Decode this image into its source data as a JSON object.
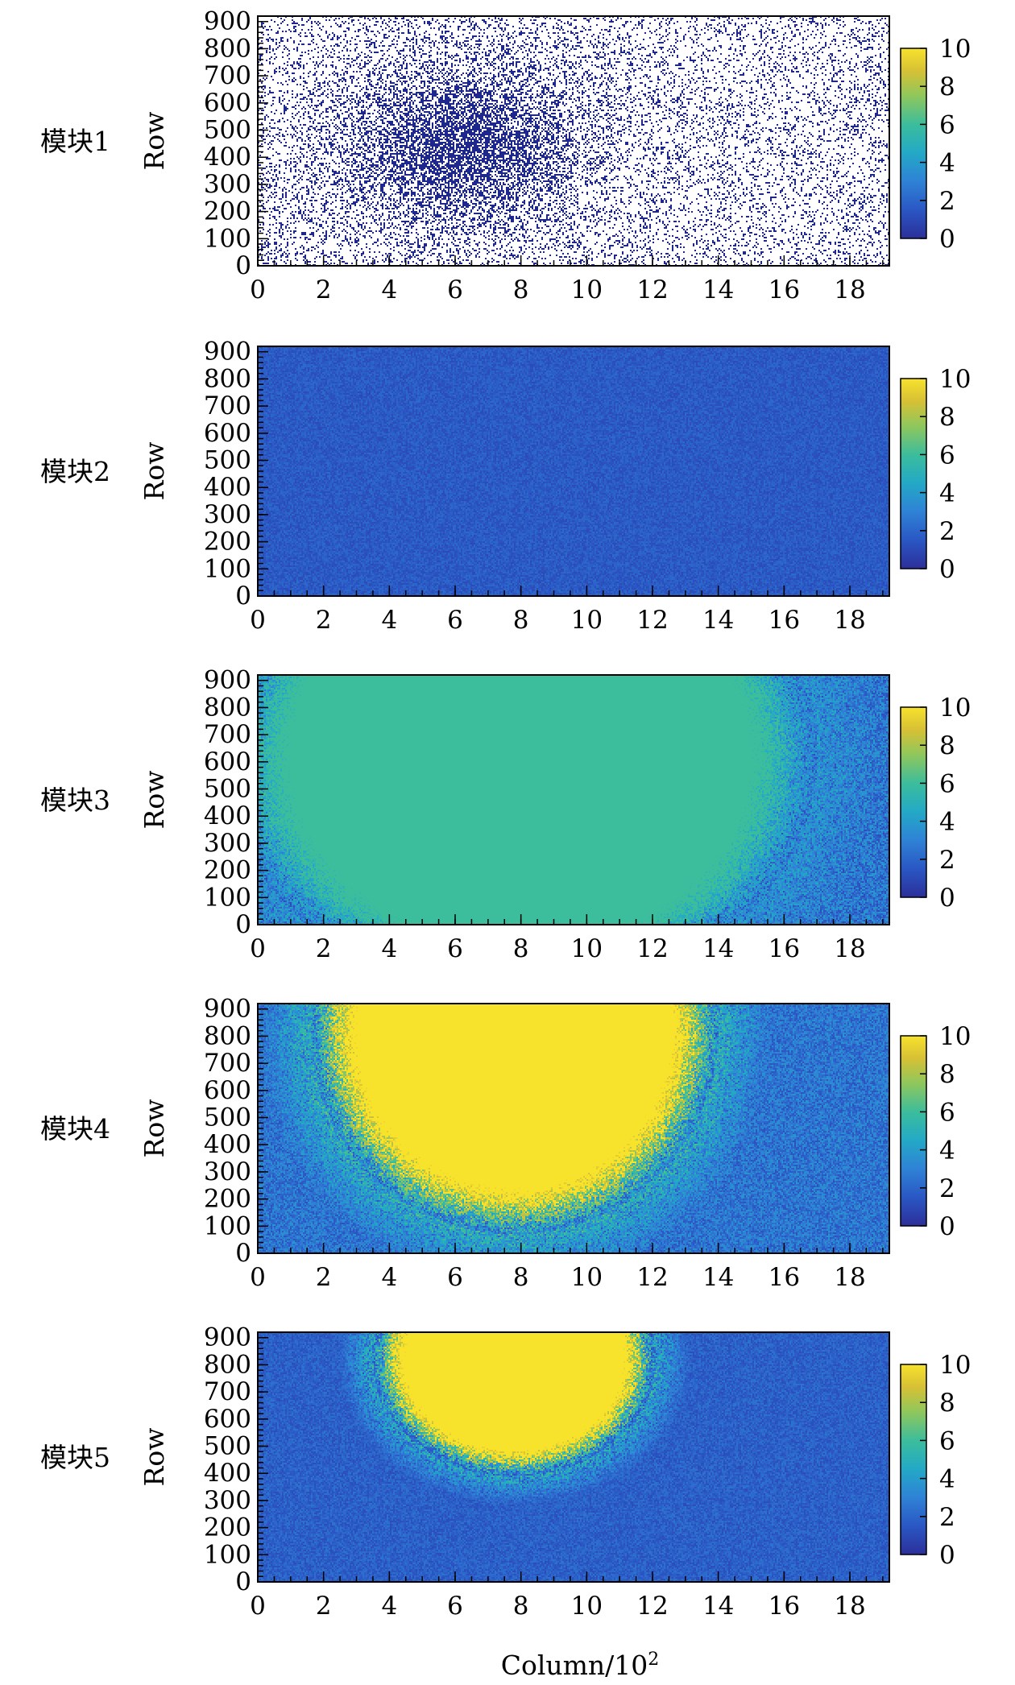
{
  "figure": {
    "xlabel": "Column/10",
    "xlabel_sup": "2"
  },
  "chart_data": [
    {
      "type": "heatmap",
      "module_label": "模块1",
      "xlabel": "",
      "ylabel": "Row",
      "xlim": [
        0,
        19.2
      ],
      "ylim": [
        0,
        920
      ],
      "x_ticks": [
        0,
        2,
        4,
        6,
        8,
        10,
        12,
        14,
        16,
        18
      ],
      "y_ticks": [
        0,
        100,
        200,
        300,
        400,
        500,
        600,
        700,
        800,
        900
      ],
      "colorbar": {
        "min": 0,
        "max": 10,
        "ticks": [
          0,
          2,
          4,
          6,
          8,
          10
        ],
        "colormap": "viridis"
      },
      "render_style": "sparse-points",
      "point_color": "#1f2a8a",
      "background_level": 0,
      "hotspot": {
        "cx": 6.2,
        "cy": 440,
        "level": 0,
        "density": 0.9
      },
      "notes_visible": false
    },
    {
      "type": "heatmap",
      "module_label": "模块2",
      "xlabel": "",
      "ylabel": "Row",
      "xlim": [
        0,
        19.2
      ],
      "ylim": [
        0,
        920
      ],
      "x_ticks": [
        0,
        2,
        4,
        6,
        8,
        10,
        12,
        14,
        16,
        18
      ],
      "y_ticks": [
        0,
        100,
        200,
        300,
        400,
        500,
        600,
        700,
        800,
        900
      ],
      "colorbar": {
        "min": 0,
        "max": 10,
        "ticks": [
          0,
          2,
          4,
          6,
          8,
          10
        ],
        "colormap": "viridis"
      },
      "render_style": "dense",
      "background_level": 1.6,
      "noise": 0.6
    },
    {
      "type": "heatmap",
      "module_label": "模块3",
      "xlabel": "",
      "ylabel": "Row",
      "xlim": [
        0,
        19.2
      ],
      "ylim": [
        0,
        920
      ],
      "x_ticks": [
        0,
        2,
        4,
        6,
        8,
        10,
        12,
        14,
        16,
        18
      ],
      "y_ticks": [
        0,
        100,
        200,
        300,
        400,
        500,
        600,
        700,
        800,
        900
      ],
      "colorbar": {
        "min": 0,
        "max": 10,
        "ticks": [
          0,
          2,
          4,
          6,
          8,
          10
        ],
        "colormap": "viridis"
      },
      "render_style": "dense",
      "background_level": 2.5,
      "noise": 1.5,
      "hotspot": {
        "cx": 8.0,
        "cy": 620,
        "rx": 9.0,
        "ry": 900,
        "level": 6.0
      }
    },
    {
      "type": "heatmap",
      "module_label": "模块4",
      "xlabel": "",
      "ylabel": "Row",
      "xlim": [
        0,
        19.2
      ],
      "ylim": [
        0,
        920
      ],
      "x_ticks": [
        0,
        2,
        4,
        6,
        8,
        10,
        12,
        14,
        16,
        18
      ],
      "y_ticks": [
        0,
        100,
        200,
        300,
        400,
        500,
        600,
        700,
        800,
        900
      ],
      "colorbar": {
        "min": 0,
        "max": 10,
        "ticks": [
          0,
          2,
          4,
          6,
          8,
          10
        ],
        "colormap": "viridis"
      },
      "render_style": "dense",
      "background_level": 2.5,
      "noise": 1.2,
      "hotspot": {
        "cx": 7.8,
        "cy": 820,
        "rx": 6.2,
        "ry": 750,
        "level": 10
      }
    },
    {
      "type": "heatmap",
      "module_label": "模块5",
      "xlabel": "",
      "ylabel": "Row",
      "xlim": [
        0,
        19.2
      ],
      "ylim": [
        0,
        920
      ],
      "x_ticks": [
        0,
        2,
        4,
        6,
        8,
        10,
        12,
        14,
        16,
        18
      ],
      "y_ticks": [
        0,
        100,
        200,
        300,
        400,
        500,
        600,
        700,
        800,
        900
      ],
      "colorbar": {
        "min": 0,
        "max": 10,
        "ticks": [
          0,
          2,
          4,
          6,
          8,
          10
        ],
        "colormap": "viridis"
      },
      "render_style": "dense",
      "background_level": 1.8,
      "noise": 0.7,
      "hotspot": {
        "cx": 7.8,
        "cy": 820,
        "rx": 4.3,
        "ry": 430,
        "level": 10
      }
    }
  ]
}
